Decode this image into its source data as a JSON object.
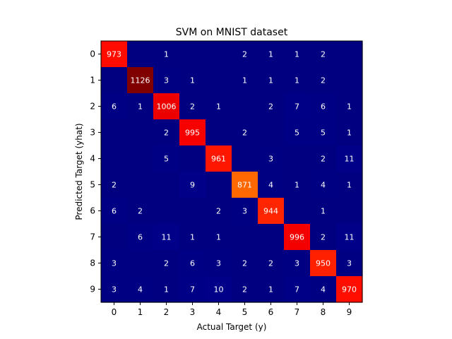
{
  "chart_data": {
    "type": "heatmap",
    "title": "SVM on MNIST dataset",
    "xlabel": "Actual Target (y)",
    "ylabel": "Predicted Target (yhat)",
    "x_categories": [
      "0",
      "1",
      "2",
      "3",
      "4",
      "5",
      "6",
      "7",
      "8",
      "9"
    ],
    "y_categories": [
      "0",
      "1",
      "2",
      "3",
      "4",
      "5",
      "6",
      "7",
      "8",
      "9"
    ],
    "values": [
      [
        973,
        0,
        1,
        0,
        0,
        2,
        1,
        1,
        2,
        0
      ],
      [
        0,
        1126,
        3,
        1,
        0,
        1,
        1,
        1,
        2,
        0
      ],
      [
        6,
        1,
        1006,
        2,
        1,
        0,
        2,
        7,
        6,
        1
      ],
      [
        0,
        0,
        2,
        995,
        0,
        2,
        0,
        5,
        5,
        1
      ],
      [
        0,
        0,
        5,
        0,
        961,
        0,
        3,
        0,
        2,
        11
      ],
      [
        2,
        0,
        0,
        9,
        0,
        871,
        4,
        1,
        4,
        1
      ],
      [
        6,
        2,
        0,
        0,
        2,
        3,
        944,
        0,
        1,
        0
      ],
      [
        0,
        6,
        11,
        1,
        1,
        0,
        0,
        996,
        2,
        11
      ],
      [
        3,
        0,
        2,
        6,
        3,
        2,
        2,
        3,
        950,
        3
      ],
      [
        3,
        4,
        1,
        7,
        10,
        2,
        1,
        7,
        4,
        970
      ]
    ],
    "value_range": [
      0,
      1126
    ],
    "colormap": "jet",
    "label_color": "#ffffff",
    "grid": false
  }
}
